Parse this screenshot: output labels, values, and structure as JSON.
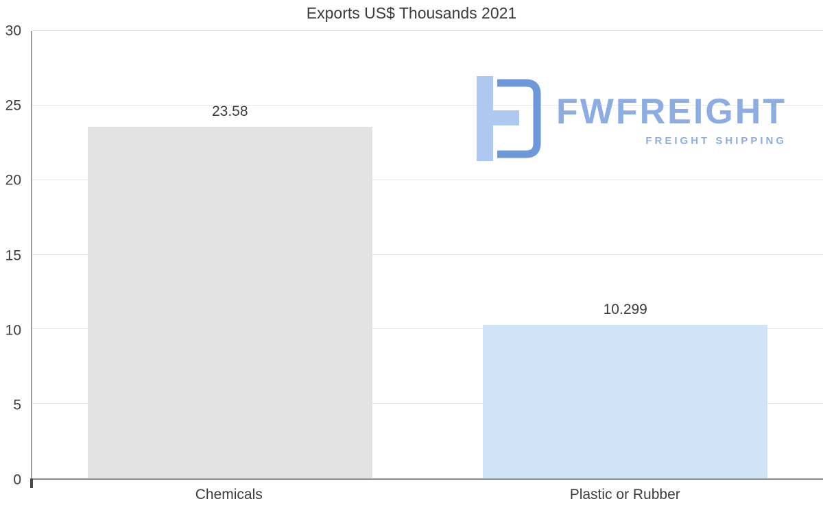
{
  "page": {
    "background": "#ffffff"
  },
  "logo": {
    "name": "FWFREIGHT",
    "subtitle": "FREIGHT SHIPPING",
    "text_color": "#8cace4",
    "icon_light_color": "#aec9f1",
    "icon_dark_color": "#6d99da"
  },
  "chart_data": {
    "type": "bar",
    "title": "Exports US$ Thousands 2021",
    "categories": [
      "Chemicals",
      "Plastic or Rubber"
    ],
    "values": [
      23.58,
      10.299
    ],
    "value_labels": [
      "23.58",
      "10.299"
    ],
    "bar_colors": [
      "#e3e3e3",
      "#d0e4f8"
    ],
    "xlabel": "",
    "ylabel": "",
    "ylim": [
      0,
      30
    ],
    "yticks": [
      0,
      5,
      10,
      15,
      20,
      25,
      30
    ],
    "grid": "horizontal",
    "legend": "none",
    "text_color": "#3c3c3c",
    "gridline_color": "#e8e8e8",
    "axis_color": "#9d9d9d"
  }
}
